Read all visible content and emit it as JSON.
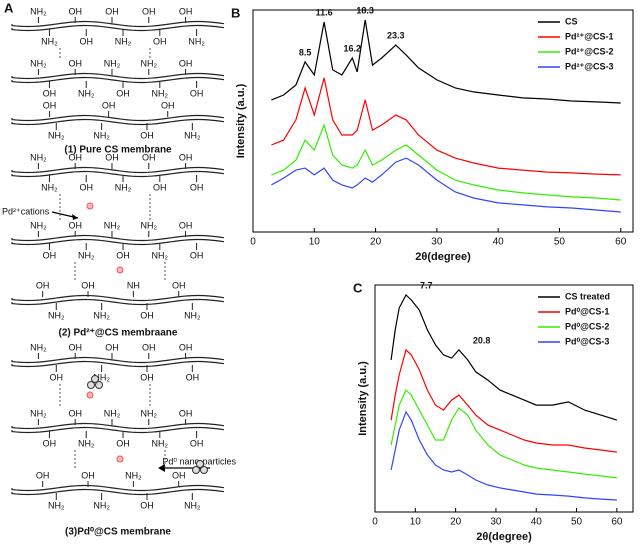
{
  "diagram": {
    "panel": "A",
    "pd_cations_label": "Pd²⁺cations",
    "nanoparticles_label": "Pd⁰ nano-particles",
    "membranes": [
      {
        "caption": "(1) Pure CS membrane",
        "chains": [
          {
            "above": [
              "NH₂",
              "OH",
              "OH",
              "OH",
              "OH"
            ],
            "below": [
              "NH₂",
              "OH",
              "NH₂",
              "OH",
              "NH₂"
            ]
          },
          {
            "above": [
              "NH₂",
              "OH",
              "NH₂",
              "NH₂",
              "OH"
            ],
            "below": [
              "OH",
              "NH₂",
              "OH",
              "NH₂",
              "OH"
            ]
          },
          {
            "above": [
              "OH",
              "OH",
              "OH"
            ],
            "below": [
              "NH₂",
              "NH₂",
              "OH",
              "NH₂"
            ]
          }
        ]
      },
      {
        "caption": "(2) Pd²⁺@CS membraane",
        "chains": [
          {
            "above": [
              "NH₂",
              "OH",
              "OH",
              "OH",
              "OH"
            ],
            "below": [
              "NH₂",
              "OH",
              "NH₂",
              "OH",
              "OH"
            ]
          },
          {
            "above": [
              "NH₂",
              "OH",
              "NH₂",
              "NH₂",
              "OH"
            ],
            "below": [
              "OH",
              "NH₂",
              "OH",
              "NH₂",
              "OH"
            ]
          },
          {
            "above": [
              "OH",
              "OH",
              "NH",
              "OH"
            ],
            "below": [
              "NH₂",
              "NH₂",
              "OH",
              "NH₂"
            ]
          }
        ]
      },
      {
        "caption": "(3)Pd⁰@CS membrane",
        "chains": [
          {
            "above": [
              "NH₂",
              "OH",
              "OH",
              "OH",
              "OH"
            ],
            "below": [
              "OH",
              "NH₂",
              "OH",
              "OH"
            ]
          },
          {
            "above": [
              "NH₂",
              "OH",
              "NH₂",
              "NH₂",
              "OH"
            ],
            "below": [
              "OH",
              "NH₂",
              "OH",
              "NH₂",
              "OH"
            ]
          },
          {
            "above": [
              "OH",
              "OH",
              "NH₂",
              "OH"
            ],
            "below": [
              "NH₂",
              "NH₂",
              "OH",
              "NH₂"
            ]
          }
        ]
      }
    ]
  },
  "chart_data": [
    {
      "type": "line",
      "panel": "B",
      "xlabel": "2θ(degree)",
      "ylabel": "Intensity (a.u.)",
      "x": [
        3,
        5,
        7,
        8.5,
        10,
        11.6,
        13,
        14.5,
        16.2,
        17,
        18.3,
        19.5,
        21,
        23.3,
        25,
        27,
        30,
        33,
        36,
        40,
        44,
        48,
        52,
        56,
        60
      ],
      "series": [
        {
          "name": "CS",
          "color": "#000000",
          "values": [
            59.5,
            61.7,
            66.2,
            76.6,
            70.7,
            94.6,
            73,
            70.7,
            78.4,
            72.1,
            95.5,
            75.2,
            78.4,
            84.2,
            79.7,
            73.9,
            68.5,
            64.9,
            63.1,
            61.7,
            60.4,
            59.9,
            59,
            58.6,
            58.1
          ]
        },
        {
          "name": "Pd²⁺@CS-1",
          "color": "#ff0000",
          "values": [
            39.2,
            41.4,
            50.5,
            64.9,
            52.7,
            69.4,
            50.5,
            43.7,
            43.7,
            45.9,
            59.5,
            45.9,
            48.2,
            52.7,
            50.5,
            43.7,
            36.9,
            33.3,
            31.1,
            28.8,
            27.9,
            27,
            26.6,
            26.1,
            25.7
          ]
        },
        {
          "name": "Pd²⁺@CS-2",
          "color": "#33ee00",
          "values": [
            25.7,
            27.9,
            32.4,
            41.4,
            36.9,
            48.2,
            34.7,
            30.2,
            28.8,
            30.2,
            36.9,
            30.2,
            32.4,
            36.9,
            39.2,
            34.7,
            27.9,
            23.4,
            21.2,
            18.9,
            17.6,
            16.7,
            15.8,
            15.3,
            14.4
          ]
        },
        {
          "name": "Pd²⁺@CS-3",
          "color": "#3344ff",
          "values": [
            21.2,
            24.3,
            27.9,
            28.8,
            25.7,
            28.8,
            23.4,
            21.2,
            19.8,
            21.2,
            24.3,
            22.5,
            25.7,
            31.5,
            33.3,
            30.2,
            23.4,
            18,
            15.3,
            13.1,
            12.2,
            11.3,
            10.8,
            9.9,
            9
          ]
        }
      ],
      "xlim": [
        0,
        62
      ],
      "ylim": [
        0,
        100
      ],
      "xticks": [
        0,
        10,
        20,
        30,
        40,
        50,
        60
      ],
      "legend": "upper right",
      "peak_labels": [
        8.5,
        11.6,
        16.2,
        18.3,
        23.3
      ]
    },
    {
      "type": "line",
      "panel": "C",
      "xlabel": "2θ(degree)",
      "ylabel": "Intensity (a.u.)",
      "x": [
        4,
        5,
        6,
        7.7,
        9,
        11,
        13,
        15,
        17,
        19,
        20.8,
        23,
        25,
        28,
        31,
        34,
        37,
        40,
        44,
        48,
        52,
        56,
        60
      ],
      "series": [
        {
          "name": "CS treated",
          "color": "#000000",
          "values": [
            67,
            80.2,
            89.9,
            95.6,
            93.4,
            89,
            80.2,
            73.6,
            69.2,
            67.8,
            71.4,
            67,
            61.7,
            58.1,
            53.7,
            51.5,
            49.3,
            47.1,
            47.1,
            48.5,
            44.9,
            42.7,
            40.5
          ]
        },
        {
          "name": "Pd⁰@CS-1",
          "color": "#ff0000",
          "values": [
            40.5,
            51.5,
            60.4,
            71.4,
            69.2,
            62.6,
            53.7,
            47.1,
            44.9,
            49.3,
            51.5,
            47.1,
            42.7,
            38.3,
            36.1,
            33.9,
            31.7,
            30.4,
            29.5,
            29.5,
            28.2,
            27.3,
            26.4
          ]
        },
        {
          "name": "Pd⁰@CS-2",
          "color": "#33ee00",
          "values": [
            29.5,
            38.3,
            47.1,
            53.7,
            51.5,
            44.9,
            38.3,
            31.7,
            31.7,
            40.5,
            45.8,
            42.7,
            36.1,
            29.5,
            25.1,
            22.9,
            20.7,
            19.4,
            18.5,
            17.6,
            16.7,
            15.9,
            15
          ]
        },
        {
          "name": "Pd⁰@CS-3",
          "color": "#3344ff",
          "values": [
            18.5,
            27.3,
            36.1,
            44.1,
            40.5,
            31.7,
            25.1,
            20.7,
            18.5,
            17.6,
            18.5,
            16.3,
            14.1,
            11.9,
            10.6,
            9.7,
            8.8,
            7.9,
            7.5,
            7,
            6.2,
            5.7,
            5.3
          ]
        }
      ],
      "xlim": [
        0,
        64
      ],
      "ylim": [
        0,
        100
      ],
      "xticks": [
        0,
        10,
        20,
        30,
        40,
        50,
        60
      ],
      "legend": "upper right",
      "peak_labels": [
        7.7,
        20.8
      ]
    }
  ]
}
